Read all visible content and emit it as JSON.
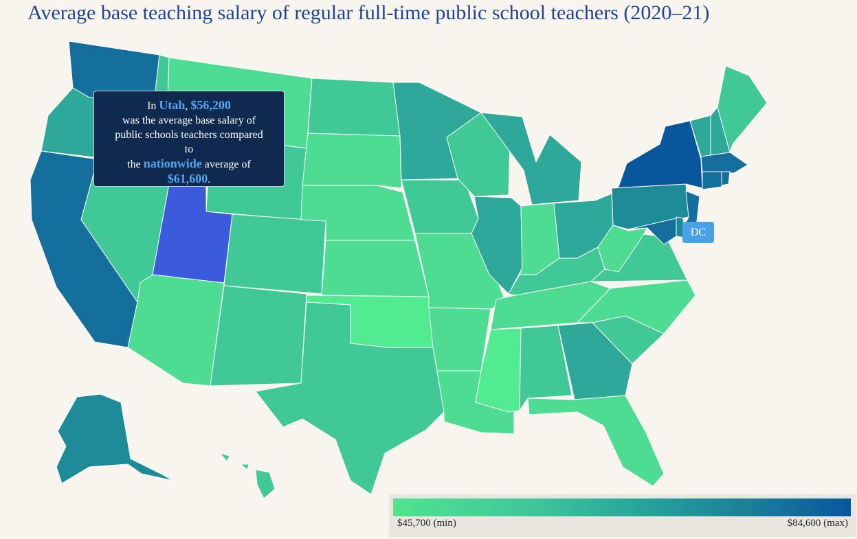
{
  "title": "Average base teaching salary of regular full-time public school teachers (2020–21)",
  "tooltip": {
    "prefix": "In ",
    "state": "Utah",
    "sep": ", ",
    "salary": "$56,200",
    "line2": "was the average base salary of",
    "line3": "public schools teachers compared",
    "line4": "to",
    "the_word": "the ",
    "nationwide": "nationwide",
    "avg_of": " average of",
    "national_avg": "$61,600",
    "period": "."
  },
  "dc_label": "DC",
  "legend": {
    "min_label": "$45,700 (min)",
    "max_label": "$84,600 (max)",
    "min_value": 45700,
    "max_value": 84600
  },
  "colors": {
    "highlight": "#3c5bdc",
    "scale": [
      "#52e38f",
      "#3fc79a",
      "#27a39a",
      "#1a7f98",
      "#08579d"
    ]
  },
  "states": {
    "WA": "dark",
    "OR": "mid",
    "CA": "dark",
    "NV": "light",
    "ID": "light",
    "MT": "lightest",
    "WY": "light",
    "UT": "highlight",
    "AZ": "lightest",
    "CO": "light",
    "NM": "light",
    "ND": "light",
    "SD": "lightest",
    "NE": "lightest",
    "KS": "lightest",
    "OK": "min",
    "TX": "light",
    "MN": "mid",
    "IA": "light",
    "MO": "lightest",
    "AR": "lightest",
    "LA": "lightest",
    "WI": "light",
    "IL": "mid",
    "MS": "min",
    "MI": "mid",
    "IN": "lightest",
    "KY": "light",
    "TN": "lightest",
    "AL": "light",
    "OH": "mid",
    "GA": "mid",
    "FL": "lightest",
    "SC": "light",
    "NC": "lightest",
    "VA": "light",
    "WV": "lightest",
    "PA": "teal",
    "NY": "max",
    "VT": "mid",
    "NH": "mid",
    "ME": "light",
    "MA": "dark",
    "CT": "dark",
    "RI": "dark",
    "NJ": "dark",
    "DE": "teal",
    "MD": "dark",
    "AK": "teal",
    "HI": "light"
  }
}
